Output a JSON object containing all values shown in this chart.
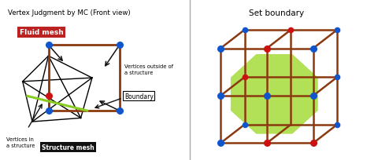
{
  "title_left": "Vertex Judgment by MC (Front view)",
  "title_right": "Set boundary",
  "fluid_mesh_label": "Fluid mesh",
  "structure_mesh_label": "Structure mesh",
  "boundary_label": "Boundary",
  "vertices_outside_label": "Vertices outside of\na structure",
  "vertices_inside_label": "Vertices in\na structure",
  "bg_color": "#ffffff",
  "brown": "#8B3A10",
  "black": "#000000",
  "blue_dot": "#1155cc",
  "red_dot": "#cc1111",
  "green_line": "#88cc22",
  "blue_line": "#3399cc",
  "arrow_color": "#111111",
  "fluid_label_bg": "#bb2222",
  "structure_label_bg": "#111111",
  "octagon_fill": "#aadd44",
  "octagon_alpha": 0.9,
  "divider_color": "#aaaaaa"
}
